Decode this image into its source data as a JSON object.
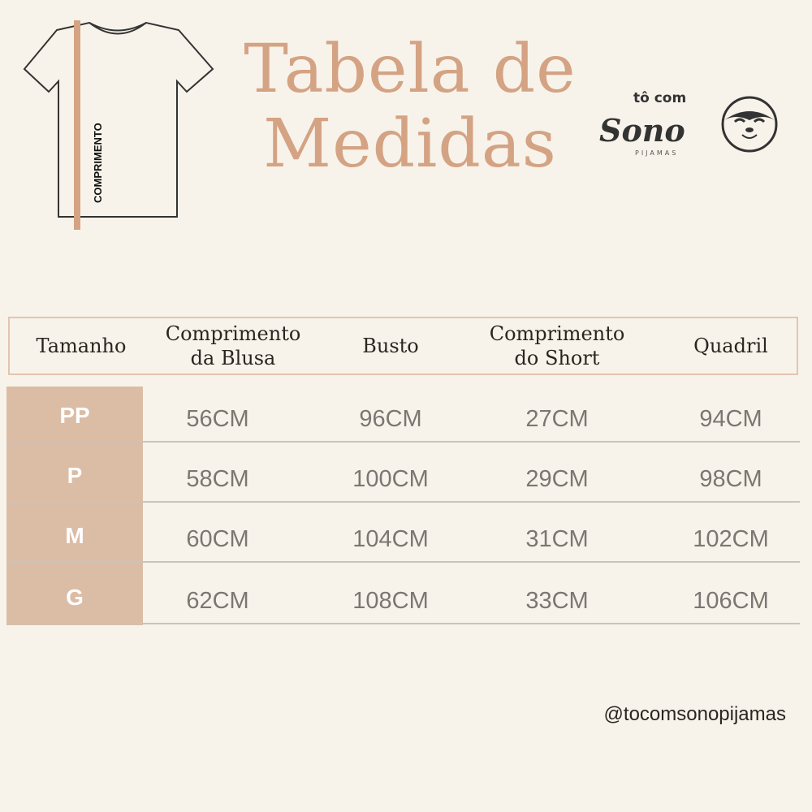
{
  "title": {
    "line1": "Tabela de",
    "line2": "Medidas"
  },
  "shirt": {
    "label": "COMPRIMENTO"
  },
  "logo": {
    "top": "tô com",
    "main": "Sono",
    "sub": "PIJAMAS"
  },
  "colors": {
    "background": "#f8f3ea",
    "accent": "#d4a384",
    "size_column": "#dbbca5"
  },
  "table": {
    "headers": [
      "Tamanho",
      "Comprimento da Blusa",
      "Busto",
      "Comprimento do Short",
      "Quadril"
    ],
    "rows": [
      {
        "size": "PP",
        "values": [
          "56CM",
          "96CM",
          "27CM",
          "94CM"
        ]
      },
      {
        "size": "P",
        "values": [
          "58CM",
          "100CM",
          "29CM",
          "98CM"
        ]
      },
      {
        "size": "M",
        "values": [
          "60CM",
          "104CM",
          "31CM",
          "102CM"
        ]
      },
      {
        "size": "G",
        "values": [
          "62CM",
          "108CM",
          "33CM",
          "106CM"
        ]
      }
    ]
  },
  "footer": {
    "handle": "@tocomsonopijamas"
  }
}
